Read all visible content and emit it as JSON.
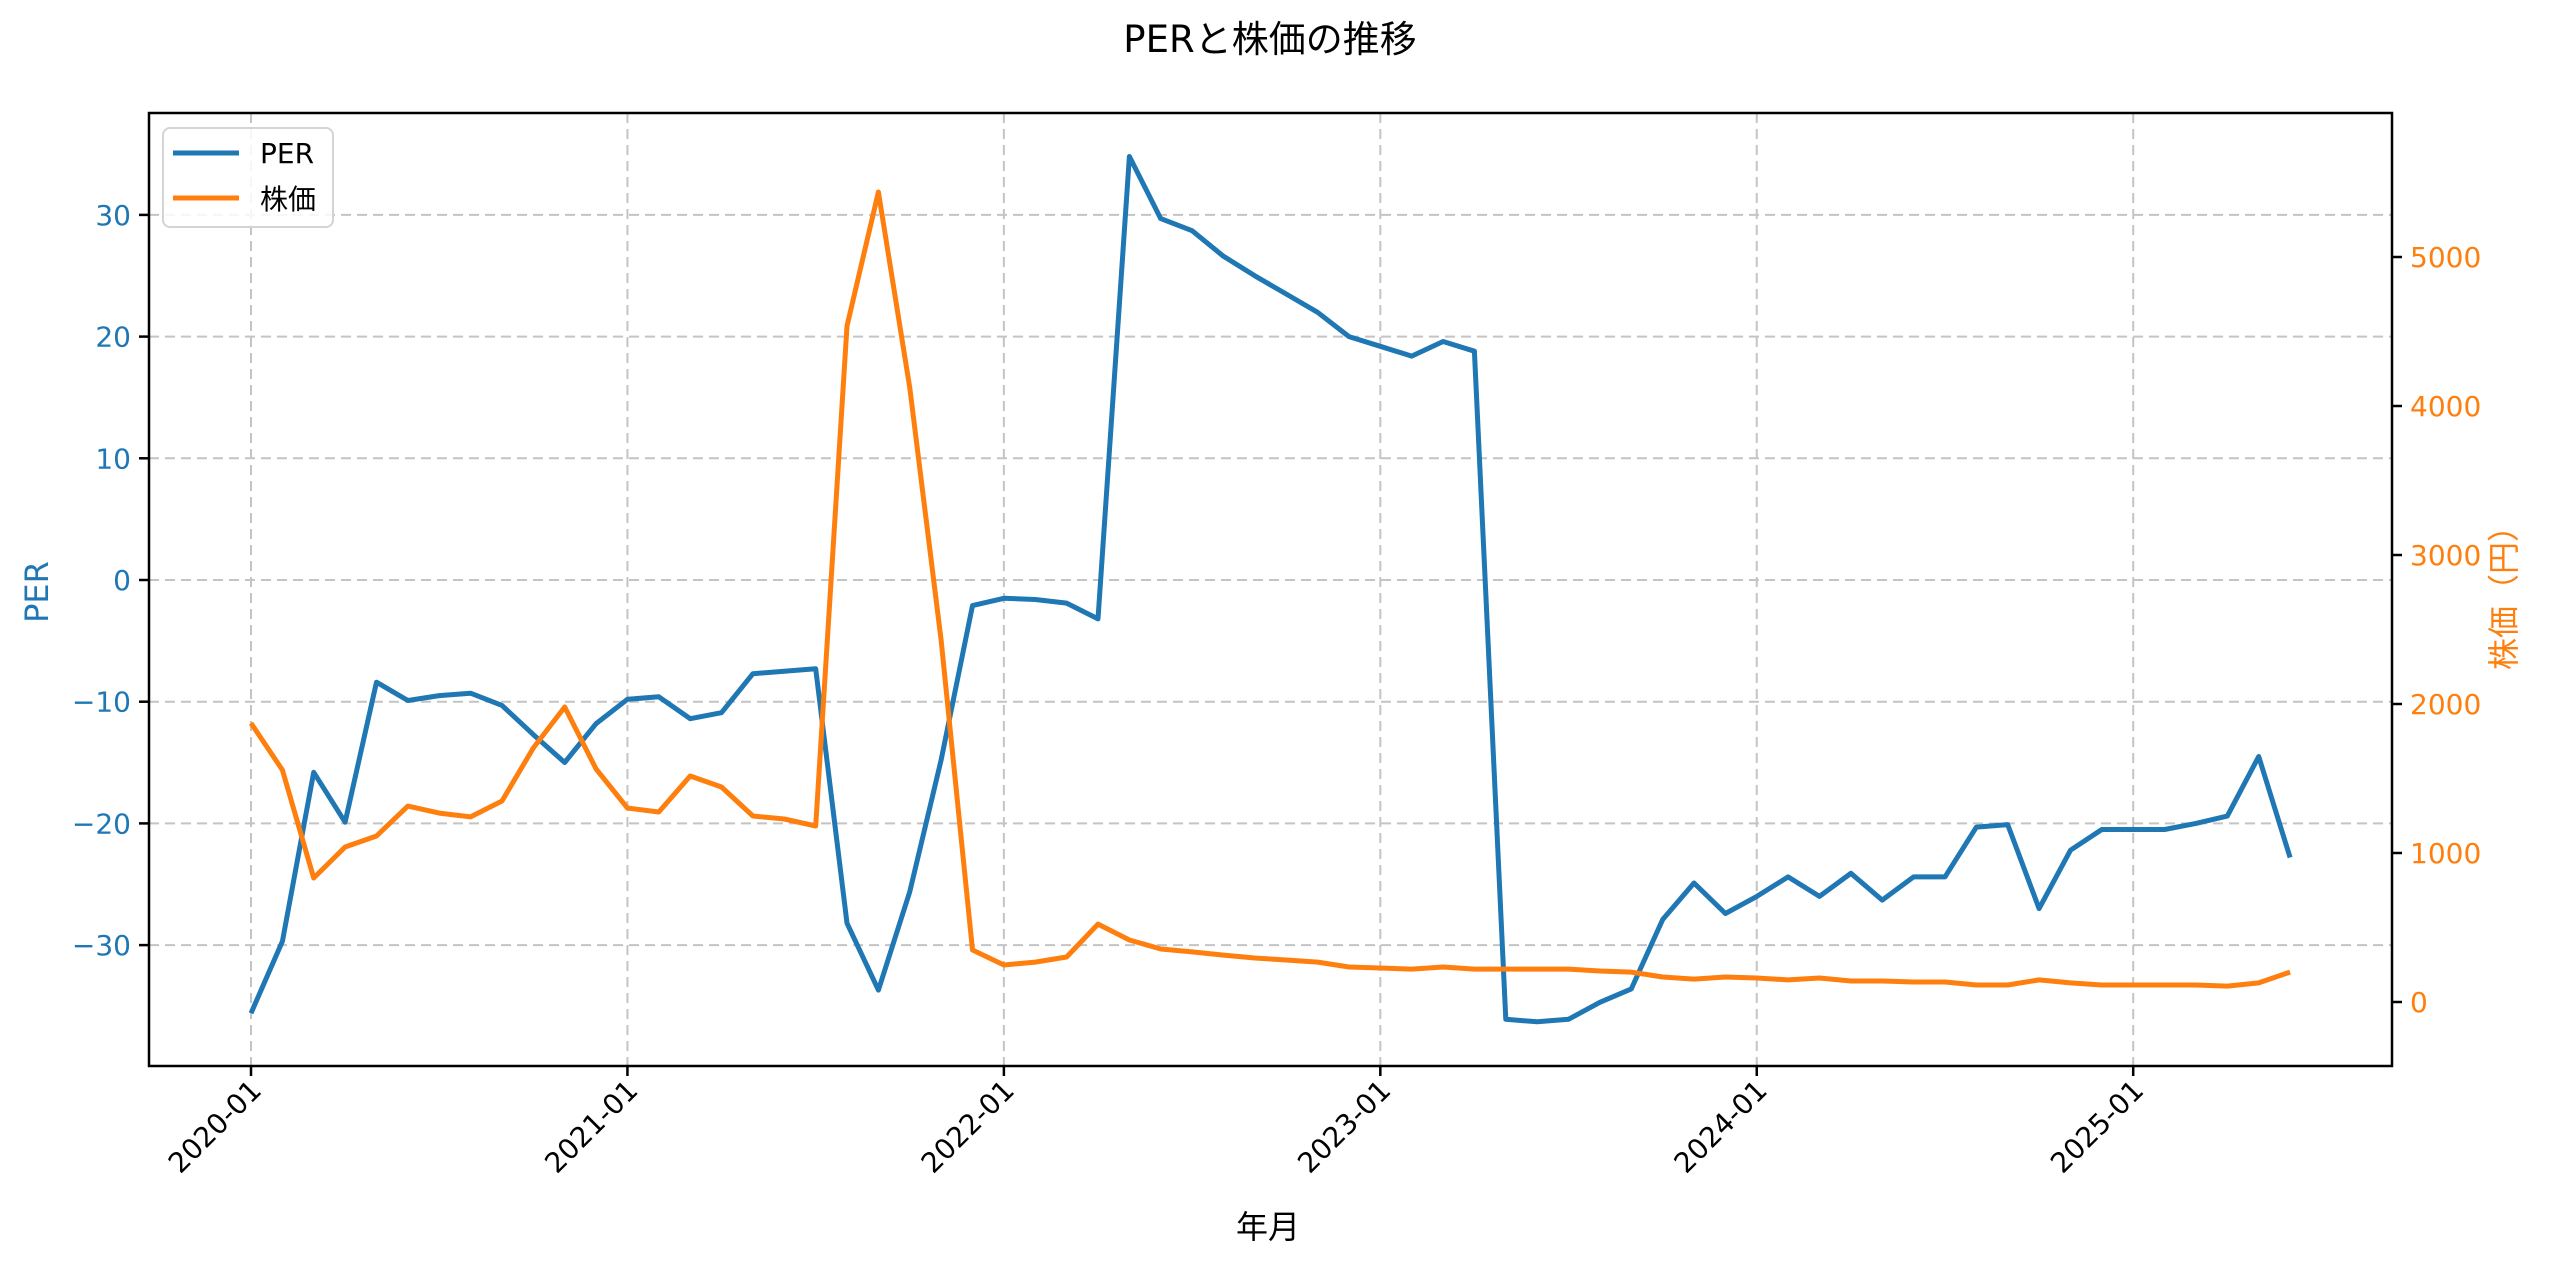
{
  "title": "PERと株価の推移",
  "xlabel": "年月",
  "ylabel_left": "PER",
  "ylabel_right": "株価（円）",
  "legend": [
    {
      "label": "PER",
      "color": "#1f77b4"
    },
    {
      "label": "株価",
      "color": "#ff7f0e"
    }
  ],
  "colors": {
    "per": "#1f77b4",
    "price": "#ff7f0e",
    "grid": "#c4c4c4",
    "axis": "#000000"
  },
  "chart_data": {
    "type": "line",
    "title": "PERと株価の推移",
    "xlabel": "年月",
    "ylabel": "PER",
    "ylabel_secondary": "株価（円）",
    "x_start": "2020-01",
    "x_end": "2025-06",
    "x_frequency": "monthly",
    "x_ticks": [
      "2020-01",
      "2021-01",
      "2022-01",
      "2023-01",
      "2024-01",
      "2025-01"
    ],
    "y_ticks_left": [
      -30,
      -20,
      -10,
      0,
      10,
      20,
      30
    ],
    "y_ticks_right": [
      0,
      1000,
      2000,
      3000,
      4000,
      5000
    ],
    "ylim_left": [
      -39.9,
      38.4
    ],
    "ylim_right": [
      -430,
      5970
    ],
    "grid": true,
    "legend_position": "upper left",
    "series": [
      {
        "name": "PER",
        "axis": "left",
        "color": "#1f77b4",
        "values": [
          -35.6,
          -29.7,
          -15.8,
          -19.9,
          -8.4,
          -9.9,
          -9.5,
          -9.3,
          -10.3,
          -12.7,
          -15.0,
          -11.8,
          -9.8,
          -9.6,
          -11.4,
          -10.9,
          -7.7,
          -7.5,
          -7.3,
          -28.2,
          -33.7,
          -25.6,
          -14.8,
          -2.1,
          -1.5,
          -1.6,
          -1.9,
          -3.2,
          34.8,
          29.7,
          28.7,
          26.6,
          25.0,
          23.5,
          22.0,
          20.0,
          19.2,
          18.4,
          19.6,
          18.8,
          -36.1,
          -36.3,
          -36.1,
          -34.7,
          -33.6,
          -27.9,
          -24.9,
          -27.4,
          -26.0,
          -24.4,
          -26.0,
          -24.1,
          -26.3,
          -24.4,
          -24.4,
          -20.3,
          -20.1,
          -27.0,
          -22.2,
          -20.5,
          -20.5,
          -20.5,
          -20.0,
          -19.4,
          -14.5,
          -22.8
        ]
      },
      {
        "name": "株価",
        "axis": "right",
        "color": "#ff7f0e",
        "values": [
          1872,
          1557,
          832,
          1040,
          1114,
          1315,
          1268,
          1242,
          1349,
          1705,
          1980,
          1564,
          1302,
          1275,
          1517,
          1443,
          1248,
          1228,
          1181,
          4537,
          5436,
          4121,
          2430,
          349,
          248,
          268,
          302,
          523,
          416,
          356,
          336,
          315,
          295,
          282,
          268,
          235,
          228,
          221,
          235,
          221,
          221,
          221,
          221,
          208,
          201,
          168,
          154,
          168,
          161,
          148,
          161,
          141,
          141,
          134,
          134,
          114,
          114,
          148,
          128,
          114,
          114,
          114,
          114,
          107,
          128,
          201
        ]
      }
    ]
  }
}
